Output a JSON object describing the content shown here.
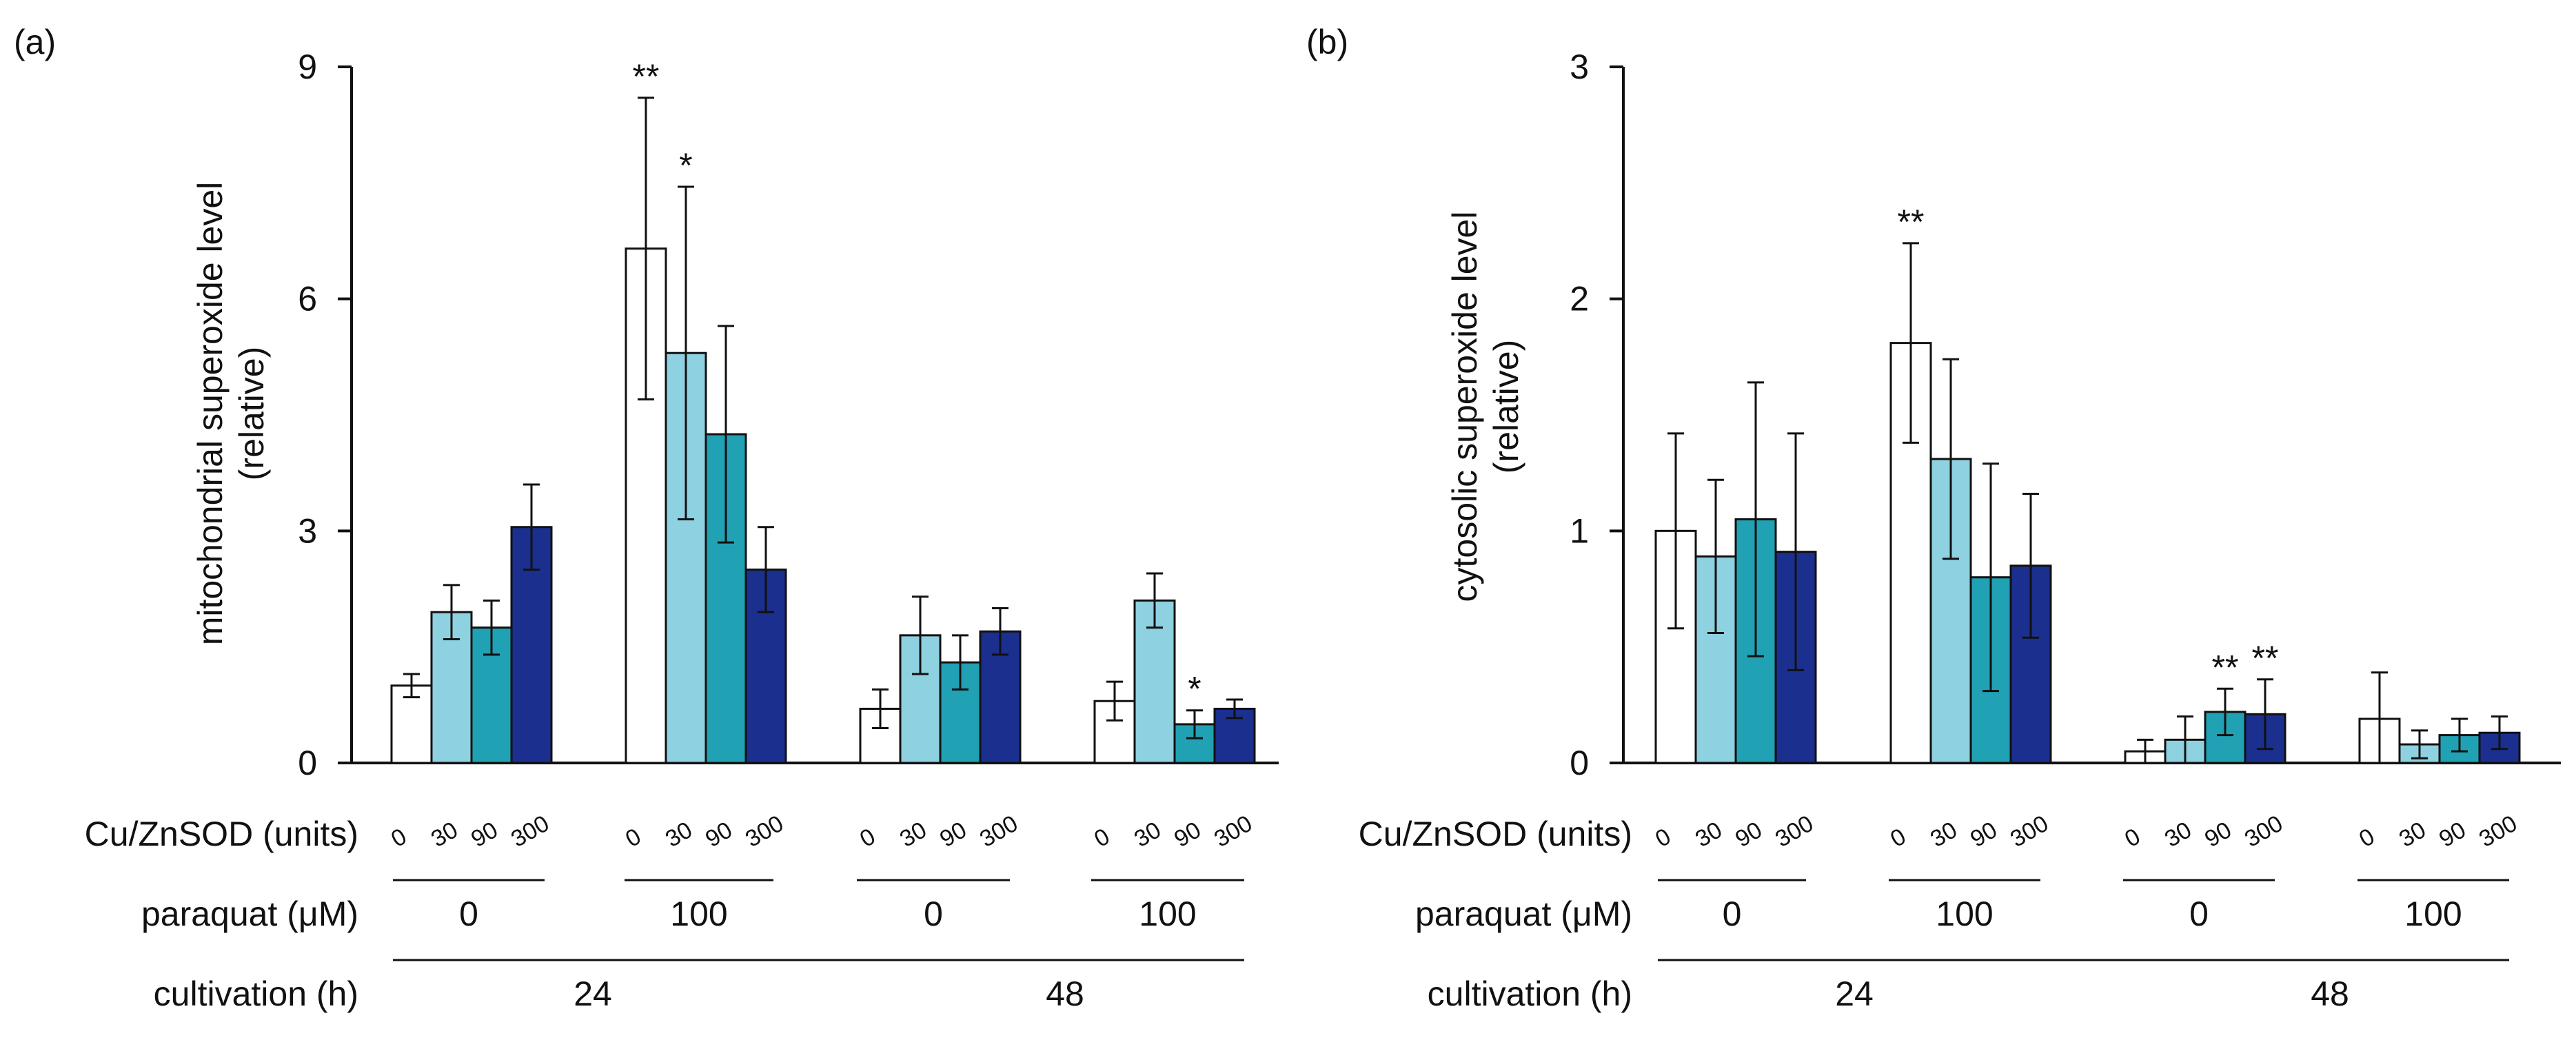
{
  "colors": {
    "dose_0": "#ffffff",
    "dose_30": "#8ed1e1",
    "dose_90": "#21a1b4",
    "dose_300": "#1b2f8f",
    "stroke": "#111111"
  },
  "row_labels": {
    "sod": "Cu/ZnSOD (units)",
    "paraquat": "paraquat (μM)",
    "cultivation": "cultivation (h)"
  },
  "chart_data": [
    {
      "panel": "(a)",
      "type": "bar",
      "ylabel_line1": "mitochondrial superoxide level",
      "ylabel_line2": "(relative)",
      "ylim": [
        0,
        9
      ],
      "yticks": [
        "0",
        "3",
        "6",
        "9"
      ],
      "ytick_values": [
        0,
        3,
        6,
        9
      ],
      "dose_labels": [
        "0",
        "30",
        "90",
        "300"
      ],
      "groups": [
        {
          "paraquat": "0",
          "cultivation": "24",
          "values": [
            1.0,
            1.95,
            1.75,
            3.05
          ],
          "errors": [
            0.15,
            0.35,
            0.35,
            0.55
          ],
          "annotations": [
            "",
            "",
            "",
            ""
          ]
        },
        {
          "paraquat": "100",
          "cultivation": "24",
          "values": [
            6.65,
            5.3,
            4.25,
            2.5
          ],
          "errors": [
            1.95,
            2.15,
            1.4,
            0.55
          ],
          "annotations": [
            "**",
            "*",
            "",
            ""
          ]
        },
        {
          "paraquat": "0",
          "cultivation": "48",
          "values": [
            0.7,
            1.65,
            1.3,
            1.7
          ],
          "errors": [
            0.25,
            0.5,
            0.35,
            0.3
          ],
          "annotations": [
            "",
            "",
            "",
            ""
          ]
        },
        {
          "paraquat": "100",
          "cultivation": "48",
          "values": [
            0.8,
            2.1,
            0.5,
            0.7
          ],
          "errors": [
            0.25,
            0.35,
            0.18,
            0.12
          ],
          "annotations": [
            "",
            "",
            "*",
            ""
          ]
        }
      ],
      "cultivation_groups": [
        {
          "label": "24",
          "groups": [
            0,
            1
          ]
        },
        {
          "label": "48",
          "groups": [
            2,
            3
          ]
        }
      ]
    },
    {
      "panel": "(b)",
      "type": "bar",
      "ylabel_line1": "cytosolic superoxide level",
      "ylabel_line2": "(relative)",
      "ylim": [
        0,
        3
      ],
      "yticks": [
        "0",
        "1",
        "2",
        "3"
      ],
      "ytick_values": [
        0,
        1,
        2,
        3
      ],
      "dose_labels": [
        "0",
        "30",
        "90",
        "300"
      ],
      "groups": [
        {
          "paraquat": "0",
          "cultivation": "24",
          "values": [
            1.0,
            0.89,
            1.05,
            0.91
          ],
          "errors": [
            0.42,
            0.33,
            0.59,
            0.51
          ],
          "annotations": [
            "",
            "",
            "",
            ""
          ]
        },
        {
          "paraquat": "100",
          "cultivation": "24",
          "values": [
            1.81,
            1.31,
            0.8,
            0.85
          ],
          "errors": [
            0.43,
            0.43,
            0.49,
            0.31
          ],
          "annotations": [
            "**",
            "",
            "",
            ""
          ]
        },
        {
          "paraquat": "0",
          "cultivation": "48",
          "values": [
            0.05,
            0.1,
            0.22,
            0.21
          ],
          "errors": [
            0.05,
            0.1,
            0.1,
            0.15
          ],
          "annotations": [
            "",
            "",
            "**",
            "**"
          ]
        },
        {
          "paraquat": "100",
          "cultivation": "48",
          "values": [
            0.19,
            0.08,
            0.12,
            0.13
          ],
          "errors": [
            0.2,
            0.06,
            0.07,
            0.07
          ],
          "annotations": [
            "",
            "",
            "",
            ""
          ]
        }
      ],
      "cultivation_groups": [
        {
          "label": "24",
          "groups": [
            0,
            1
          ]
        },
        {
          "label": "48",
          "groups": [
            2,
            3
          ]
        }
      ]
    }
  ]
}
